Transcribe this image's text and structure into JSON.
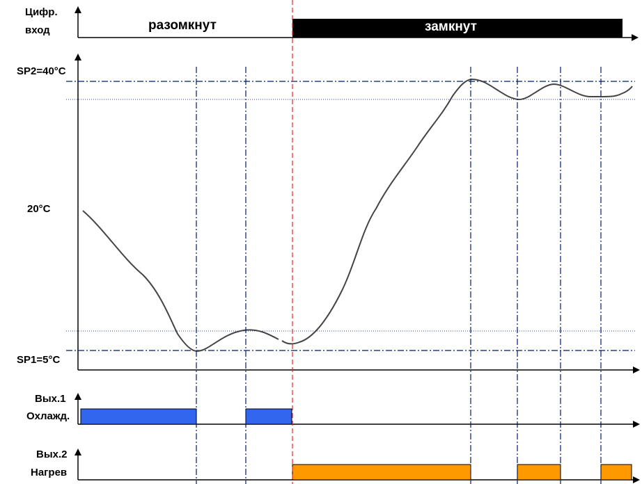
{
  "digital_input": {
    "label_line1": "Цифр.",
    "label_line2": "вход",
    "state_open": "разомкнут",
    "state_closed": "замкнут"
  },
  "temperature": {
    "sp2_label": "SP2=40°C",
    "mid_label": "20°C",
    "sp1_label": "SP1=5°C"
  },
  "output1": {
    "label_line1": "Вых.1",
    "label_line2": "Охлажд."
  },
  "output2": {
    "label_line1": "Вых.2",
    "label_line2": "Нагрев"
  },
  "colors": {
    "closed_bar": "#000000",
    "cooling": "#3366ee",
    "heating": "#ff9900",
    "switch_line": "#ee2222",
    "setpoint_line": "#001a66",
    "hysteresis_line": "#2a3a9a",
    "event_line": "#001a66",
    "curve": "#444444"
  }
}
